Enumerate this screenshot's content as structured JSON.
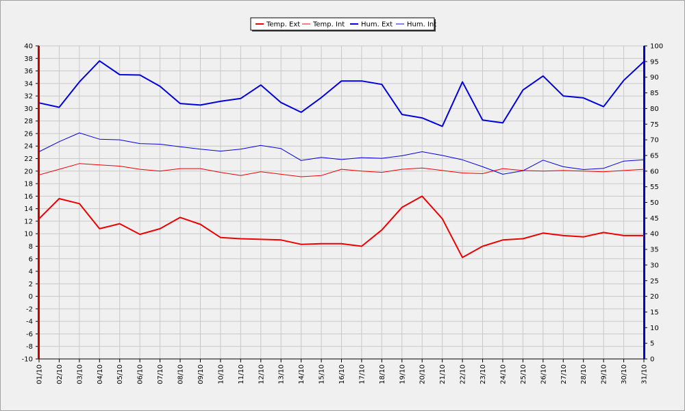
{
  "chart_data": {
    "type": "line",
    "categories": [
      "01/10",
      "02/10",
      "03/10",
      "04/10",
      "05/10",
      "06/10",
      "07/10",
      "08/10",
      "09/10",
      "10/10",
      "11/10",
      "12/10",
      "13/10",
      "14/10",
      "15/10",
      "16/10",
      "17/10",
      "18/10",
      "19/10",
      "20/10",
      "21/10",
      "22/10",
      "23/10",
      "24/10",
      "25/10",
      "26/10",
      "27/10",
      "28/10",
      "29/10",
      "30/10",
      "31/10"
    ],
    "y_left": {
      "min": -10,
      "max": 40,
      "step": 2,
      "color": "#cc0000"
    },
    "y_right": {
      "min": 0,
      "max": 100,
      "step": 5,
      "color": "#0000cc"
    },
    "grid": true,
    "legend_position": "top-center",
    "series": [
      {
        "name": "Temp. Ext",
        "axis": "left",
        "color": "#ee0000",
        "width": 2,
        "values": [
          12.4,
          15.6,
          14.8,
          10.8,
          11.6,
          9.9,
          10.8,
          12.6,
          11.5,
          9.4,
          9.2,
          9.1,
          9.0,
          8.3,
          8.4,
          8.4,
          8.0,
          10.6,
          14.2,
          16.0,
          12.4,
          6.2,
          8.0,
          9.0,
          9.2,
          10.1,
          9.7,
          9.5,
          10.2,
          9.7,
          9.7
        ]
      },
      {
        "name": "Temp. Int",
        "axis": "left",
        "color": "#ee0000",
        "width": 1,
        "values": [
          19.4,
          20.3,
          21.2,
          21.0,
          20.8,
          20.3,
          20.0,
          20.4,
          20.4,
          19.8,
          19.3,
          19.9,
          19.5,
          19.1,
          19.3,
          20.3,
          20.0,
          19.8,
          20.3,
          20.5,
          20.1,
          19.7,
          19.6,
          20.4,
          20.1,
          20.0,
          20.1,
          20.0,
          19.9,
          20.1,
          20.3
        ]
      },
      {
        "name": "Hum. Ext",
        "axis": "right",
        "color": "#0000dd",
        "width": 2,
        "values": [
          81.8,
          80.4,
          88.5,
          95.2,
          90.8,
          90.7,
          87.1,
          81.6,
          81.1,
          82.3,
          83.2,
          87.5,
          81.9,
          78.8,
          83.5,
          88.8,
          88.8,
          87.7,
          78.1,
          77.0,
          74.3,
          88.5,
          76.3,
          75.4,
          85.9,
          90.4,
          84.0,
          83.4,
          80.6,
          89.0,
          95.0
        ]
      },
      {
        "name": "Hum. Int",
        "axis": "right",
        "color": "#0000dd",
        "width": 1,
        "values": [
          66.2,
          69.4,
          72.2,
          70.2,
          70.0,
          68.8,
          68.6,
          67.8,
          67.0,
          66.4,
          67.0,
          68.2,
          67.2,
          63.4,
          64.4,
          63.7,
          64.3,
          64.1,
          64.9,
          66.2,
          65.0,
          63.6,
          61.4,
          59.0,
          60.1,
          63.5,
          61.4,
          60.5,
          60.9,
          63.2,
          63.6
        ]
      }
    ]
  }
}
